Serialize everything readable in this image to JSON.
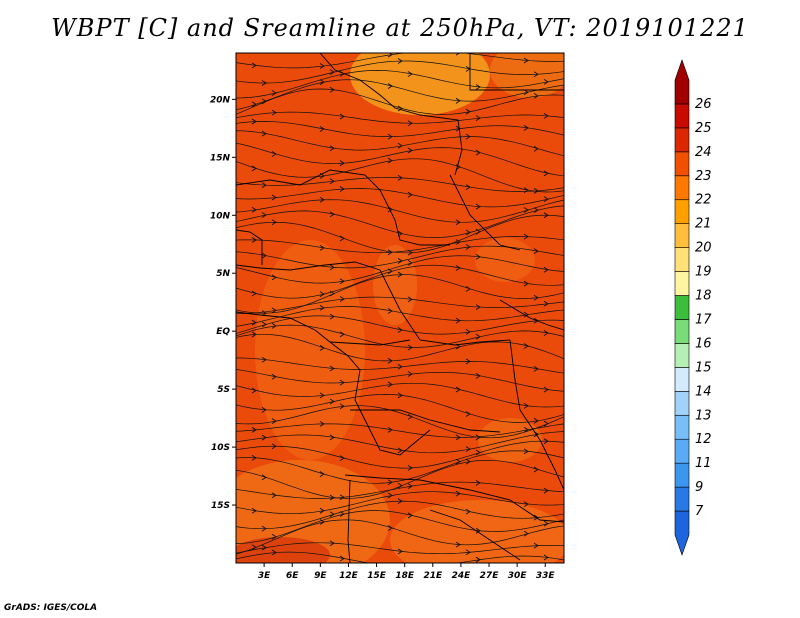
{
  "title": "WBPT [C] and Sreamline at 250hPa, VT: 2019101221",
  "footer": "GrADS: IGES/COLA",
  "map": {
    "lat_ticks": [
      "20N",
      "15N",
      "10N",
      "5N",
      "EQ",
      "5S",
      "10S",
      "15S"
    ],
    "lat_values": [
      20,
      15,
      10,
      5,
      0,
      -5,
      -10,
      -15
    ],
    "lon_ticks": [
      "3E",
      "6E",
      "9E",
      "12E",
      "15E",
      "18E",
      "21E",
      "24E",
      "27E",
      "30E",
      "33E"
    ],
    "lon_values": [
      3,
      6,
      9,
      12,
      15,
      18,
      21,
      24,
      27,
      30,
      33
    ],
    "lat_range": [
      -20,
      24
    ],
    "lon_range": [
      0,
      35
    ],
    "field": "Wet-bulb potential temperature",
    "units": "C",
    "level": "250hPa"
  },
  "colorbar": {
    "labels": [
      "7",
      "9",
      "11",
      "12",
      "13",
      "14",
      "15",
      "16",
      "17",
      "18",
      "19",
      "20",
      "21",
      "22",
      "23",
      "24",
      "25",
      "26"
    ],
    "colors": [
      "#1e64dc",
      "#2878e6",
      "#3c96f0",
      "#5aaaf5",
      "#78bef9",
      "#a0d2fc",
      "#d2ecfe",
      "#b4f0b4",
      "#78dc78",
      "#3cbe3c",
      "#fff5a0",
      "#ffe178",
      "#ffbe3c",
      "#ffa000",
      "#ff7800",
      "#f05000",
      "#dc2800",
      "#c80a00",
      "#a00000"
    ]
  }
}
